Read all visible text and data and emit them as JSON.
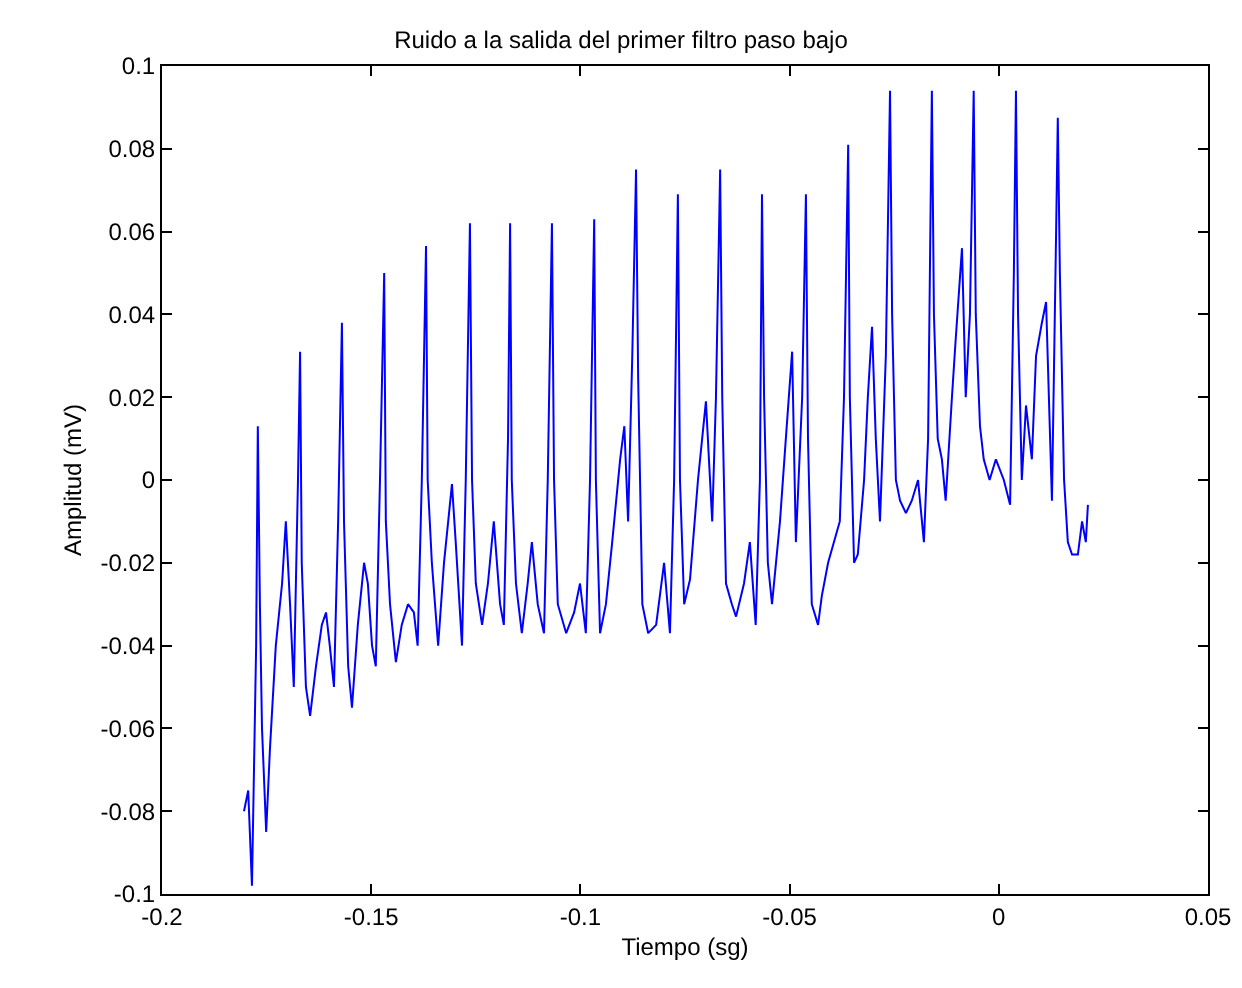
{
  "chart_data": {
    "type": "line",
    "title": "Ruido a la salida del primer filtro paso bajo",
    "xlabel": "Tiempo (sg)",
    "ylabel": "Amplitud (mV)",
    "xlim": [
      -0.2,
      0.05
    ],
    "xticks": [
      -0.2,
      -0.15,
      -0.1,
      -0.05,
      0,
      0.05
    ],
    "ylim": [
      -0.1,
      0.1
    ],
    "yticks": [
      -0.1,
      -0.08,
      -0.06,
      -0.04,
      -0.02,
      0,
      0.02,
      0.04,
      0.06,
      0.08,
      0.1
    ],
    "grid": false,
    "legend": false,
    "marker": "none",
    "line_style": "solid",
    "series": [
      {
        "color": "#0000ff",
        "x": [
          -0.1804,
          -0.1794,
          -0.1785,
          -0.1775,
          -0.1771,
          -0.1766,
          -0.1761,
          -0.1751,
          -0.1742,
          -0.1728,
          -0.1713,
          -0.1704,
          -0.1694,
          -0.1685,
          -0.1675,
          -0.167,
          -0.1666,
          -0.1656,
          -0.1646,
          -0.1632,
          -0.1618,
          -0.1608,
          -0.1599,
          -0.1589,
          -0.1579,
          -0.157,
          -0.1565,
          -0.1555,
          -0.1546,
          -0.1532,
          -0.1517,
          -0.1508,
          -0.1498,
          -0.1489,
          -0.1479,
          -0.1469,
          -0.1465,
          -0.1455,
          -0.1441,
          -0.1427,
          -0.1412,
          -0.1398,
          -0.1389,
          -0.1379,
          -0.1369,
          -0.1365,
          -0.1355,
          -0.134,
          -0.1326,
          -0.1307,
          -0.1298,
          -0.1283,
          -0.1274,
          -0.1264,
          -0.1259,
          -0.125,
          -0.1235,
          -0.1221,
          -0.1207,
          -0.1192,
          -0.1183,
          -0.1173,
          -0.1168,
          -0.1164,
          -0.1154,
          -0.114,
          -0.1126,
          -0.1116,
          -0.1102,
          -0.1087,
          -0.1078,
          -0.1068,
          -0.1063,
          -0.1054,
          -0.1034,
          -0.1015,
          -0.1001,
          -0.0987,
          -0.0977,
          -0.0967,
          -0.0963,
          -0.0953,
          -0.0939,
          -0.0924,
          -0.0905,
          -0.0895,
          -0.0886,
          -0.0876,
          -0.0867,
          -0.0862,
          -0.0852,
          -0.0838,
          -0.0819,
          -0.08,
          -0.0786,
          -0.0776,
          -0.0767,
          -0.0762,
          -0.0752,
          -0.0738,
          -0.0719,
          -0.07,
          -0.0685,
          -0.0676,
          -0.0666,
          -0.0661,
          -0.0652,
          -0.0638,
          -0.0628,
          -0.0609,
          -0.0595,
          -0.0581,
          -0.0571,
          -0.0566,
          -0.0561,
          -0.0552,
          -0.0542,
          -0.0523,
          -0.0509,
          -0.0494,
          -0.0485,
          -0.047,
          -0.0461,
          -0.0456,
          -0.0447,
          -0.0432,
          -0.0423,
          -0.0408,
          -0.0394,
          -0.038,
          -0.037,
          -0.036,
          -0.0356,
          -0.0346,
          -0.0337,
          -0.0322,
          -0.0313,
          -0.0303,
          -0.0294,
          -0.0284,
          -0.027,
          -0.026,
          -0.0255,
          -0.0246,
          -0.0236,
          -0.0222,
          -0.0208,
          -0.0193,
          -0.0179,
          -0.0169,
          -0.016,
          -0.0155,
          -0.0146,
          -0.0136,
          -0.0127,
          -0.0112,
          -0.0103,
          -0.0088,
          -0.0079,
          -0.0069,
          -0.006,
          -0.0055,
          -0.0045,
          -0.0036,
          -0.0022,
          -0.0007,
          0.0012,
          0.0027,
          0.0036,
          0.0041,
          0.0046,
          0.0055,
          0.0065,
          0.0079,
          0.0089,
          0.0103,
          0.0113,
          0.0127,
          0.0137,
          0.0141,
          0.0146,
          0.0156,
          0.0165,
          0.0175,
          0.0189,
          0.0199,
          0.0208,
          0.0213
        ],
        "values": [
          -0.08,
          -0.075,
          -0.098,
          -0.04,
          0.013,
          -0.03,
          -0.06,
          -0.085,
          -0.065,
          -0.04,
          -0.025,
          -0.01,
          -0.03,
          -0.05,
          0,
          0.031,
          -0.02,
          -0.05,
          -0.057,
          -0.045,
          -0.035,
          -0.032,
          -0.04,
          -0.05,
          -0.01,
          0.038,
          -0.01,
          -0.045,
          -0.055,
          -0.035,
          -0.02,
          -0.025,
          -0.04,
          -0.045,
          0,
          0.05,
          -0.01,
          -0.03,
          -0.044,
          -0.035,
          -0.03,
          -0.032,
          -0.04,
          0,
          0.0565,
          0,
          -0.02,
          -0.04,
          -0.02,
          -0.001,
          -0.015,
          -0.04,
          0,
          0.062,
          0,
          -0.025,
          -0.035,
          -0.025,
          -0.01,
          -0.03,
          -0.035,
          0.01,
          0.062,
          0,
          -0.025,
          -0.037,
          -0.025,
          -0.015,
          -0.03,
          -0.037,
          0,
          0.062,
          0,
          -0.03,
          -0.037,
          -0.032,
          -0.025,
          -0.037,
          0,
          0.063,
          0,
          -0.037,
          -0.03,
          -0.015,
          0.005,
          0.013,
          -0.01,
          0.03,
          0.075,
          0.025,
          -0.03,
          -0.037,
          -0.035,
          -0.02,
          -0.037,
          0,
          0.069,
          0,
          -0.03,
          -0.024,
          0,
          0.019,
          -0.01,
          0.02,
          0.075,
          0.02,
          -0.025,
          -0.03,
          -0.033,
          -0.025,
          -0.015,
          -0.035,
          0,
          0.069,
          0.02,
          -0.02,
          -0.03,
          -0.01,
          0.01,
          0.031,
          -0.015,
          0.02,
          0.069,
          0.01,
          -0.03,
          -0.035,
          -0.028,
          -0.02,
          -0.015,
          -0.01,
          0.02,
          0.081,
          0.02,
          -0.02,
          -0.018,
          0,
          0.02,
          0.037,
          0.01,
          -0.01,
          0.03,
          0.094,
          0.04,
          0,
          -0.005,
          -0.008,
          -0.005,
          0,
          -0.015,
          0.01,
          0.094,
          0.04,
          0.01,
          0.005,
          -0.005,
          0.02,
          0.034,
          0.056,
          0.02,
          0.04,
          0.094,
          0.04,
          0.013,
          0.005,
          0,
          0.005,
          0,
          -0.006,
          0.05,
          0.094,
          0.04,
          0,
          0.018,
          0.005,
          0.03,
          0.038,
          0.043,
          -0.005,
          0.06,
          0.0875,
          0.05,
          0,
          -0.015,
          -0.018,
          -0.018,
          -0.01,
          -0.015,
          -0.006
        ]
      }
    ]
  }
}
